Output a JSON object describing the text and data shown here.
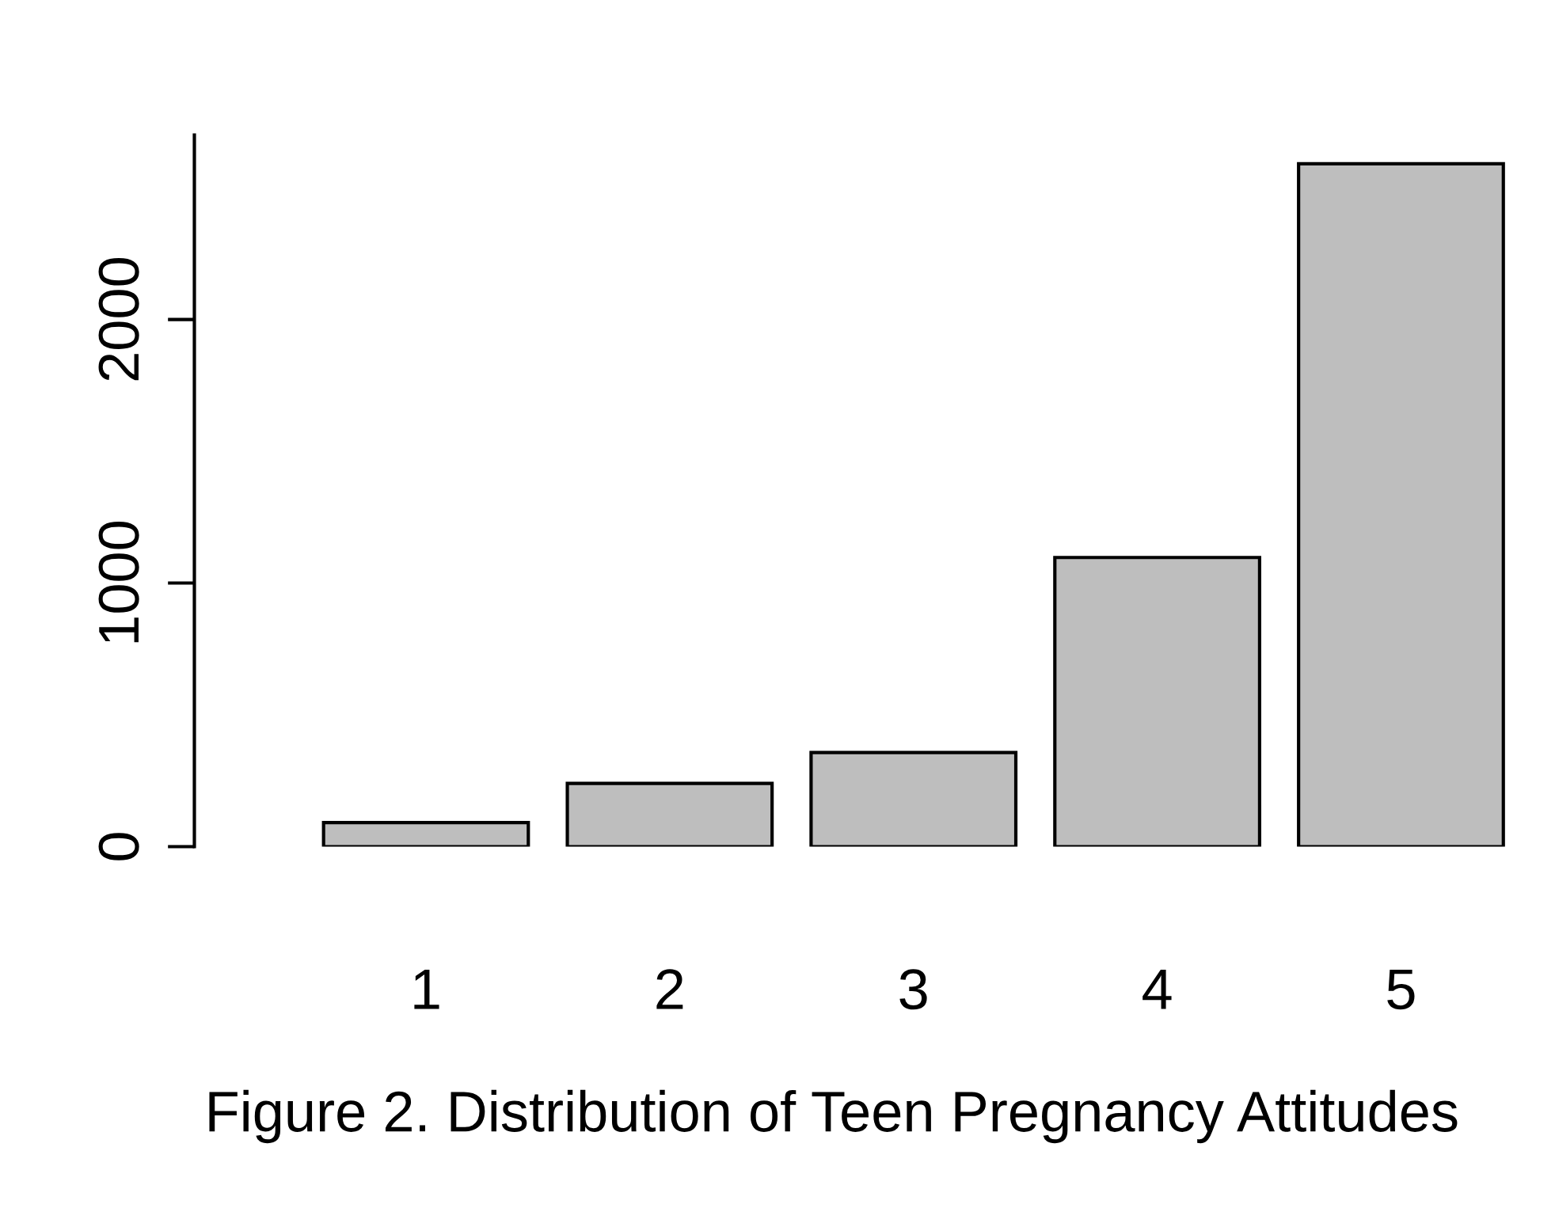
{
  "chart_data": {
    "type": "bar",
    "categories": [
      "1",
      "2",
      "3",
      "4",
      "5"
    ],
    "values": [
      91,
      240,
      357,
      1097,
      2591
    ],
    "color": "#bebebe",
    "ylim": [
      0,
      2700
    ],
    "yticks": [
      0,
      1000,
      2000
    ],
    "grid": false,
    "annotations": [
      "Figure 2. Distribution of Teen Pregnancy Attitudes"
    ]
  }
}
